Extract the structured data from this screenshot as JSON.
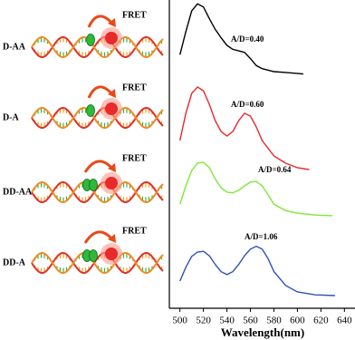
{
  "chart_data": [
    {
      "type": "line",
      "title": "D-AA",
      "annotations": [
        "FRET",
        "A/D=0.40"
      ],
      "xlim": [
        491,
        649
      ],
      "ylim": [
        0,
        100
      ],
      "series": [
        {
          "color": "#000000",
          "x": [
            500,
            505,
            510,
            515,
            520,
            525,
            530,
            535,
            540,
            545,
            550,
            555,
            560,
            565,
            570,
            580,
            590,
            605
          ],
          "values": [
            29,
            59,
            86,
            95,
            91,
            76,
            62,
            51,
            41,
            36,
            34,
            32,
            24,
            15,
            11,
            7,
            6,
            4
          ]
        }
      ]
    },
    {
      "type": "line",
      "title": "D-A",
      "annotations": [
        "FRET",
        "A/D=0.60"
      ],
      "xlim": [
        491,
        649
      ],
      "ylim": [
        0,
        100
      ],
      "series": [
        {
          "color": "#e8282a",
          "x": [
            500,
            505,
            510,
            515,
            520,
            525,
            530,
            535,
            540,
            545,
            550,
            555,
            560,
            565,
            570,
            580,
            590,
            600,
            610
          ],
          "values": [
            35,
            65,
            87,
            94,
            90,
            75,
            57,
            45,
            40,
            45,
            57,
            65,
            62,
            50,
            35,
            18,
            10,
            5,
            3
          ]
        }
      ]
    },
    {
      "type": "line",
      "title": "DD-AA",
      "annotations": [
        "FRET",
        "A/D=0.64"
      ],
      "xlim": [
        491,
        649
      ],
      "ylim": [
        0,
        100
      ],
      "series": [
        {
          "color": "#7ee83a",
          "x": [
            500,
            505,
            510,
            515,
            520,
            525,
            530,
            535,
            540,
            545,
            550,
            555,
            560,
            565,
            570,
            575,
            580,
            590,
            600,
            615,
            630
          ],
          "values": [
            21,
            50,
            74,
            86,
            87,
            79,
            61,
            47,
            40,
            39,
            43,
            50,
            56,
            57,
            50,
            36,
            21,
            11,
            7,
            4,
            3
          ]
        }
      ]
    },
    {
      "type": "line",
      "title": "DD-A",
      "annotations": [
        "FRET",
        "A/D=1.06"
      ],
      "xlim": [
        491,
        649
      ],
      "ylim": [
        0,
        100
      ],
      "xticks": [
        500,
        520,
        540,
        560,
        580,
        600,
        620,
        640
      ],
      "xlabel": "Wavelength(nm)",
      "series": [
        {
          "color": "#2f52b5",
          "x": [
            500,
            505,
            510,
            515,
            520,
            525,
            530,
            535,
            540,
            545,
            550,
            555,
            560,
            565,
            570,
            575,
            580,
            590,
            600,
            615,
            632
          ],
          "values": [
            25,
            44,
            59,
            65,
            66,
            60,
            48,
            38,
            34,
            38,
            48,
            60,
            69,
            73,
            69,
            56,
            38,
            19,
            10,
            6,
            5
          ]
        }
      ]
    }
  ]
}
